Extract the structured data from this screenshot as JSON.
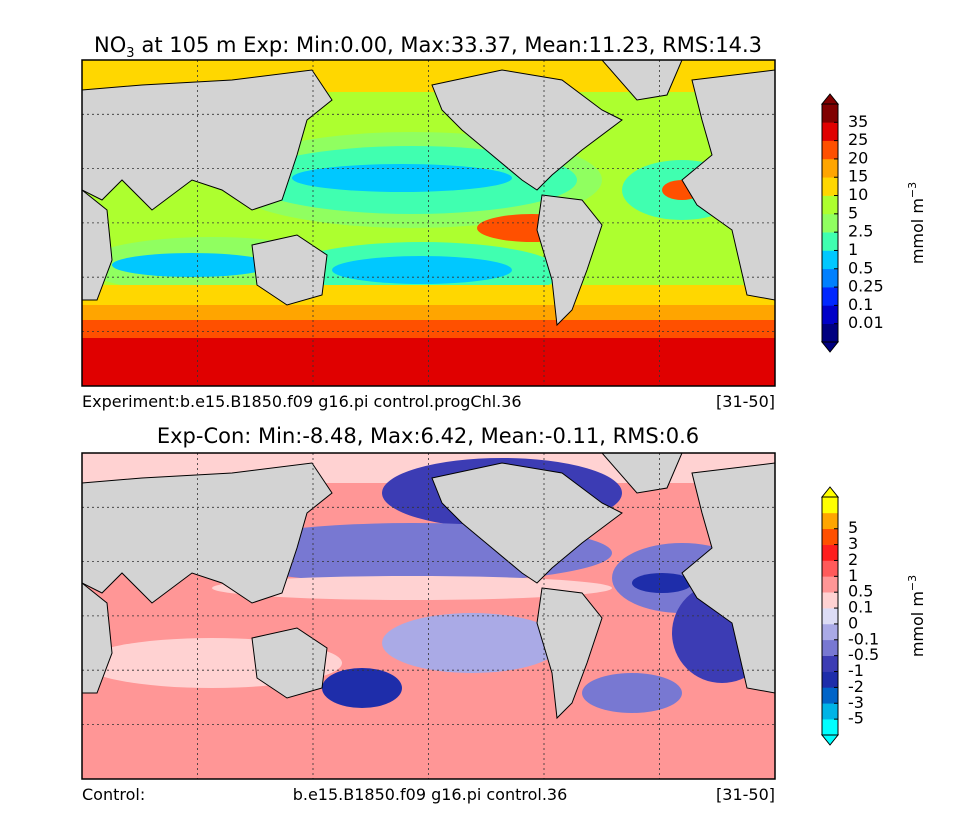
{
  "panels": [
    {
      "title": {
        "species": "NO",
        "subscript": "3",
        "text": "at 105 m Exp: Min:0.00, Max:33.37, Mean:11.23, RMS:14.3"
      },
      "footer": [
        "Experiment:b.e15.B1850.f09 g16.pi control.progChl.36",
        "[31-50]"
      ],
      "colorbar": {
        "labels": [
          "0.01",
          "0.1",
          "0.25",
          "0.5",
          "1",
          "2.5",
          "5",
          "10",
          "15",
          "20",
          "25",
          "35"
        ],
        "colors": [
          "#000080",
          "#0000c8",
          "#0028ff",
          "#0080ff",
          "#00c8ff",
          "#40ffb0",
          "#90ff60",
          "#adff2f",
          "#ffd700",
          "#ffa500",
          "#ff5000",
          "#e00000",
          "#800000"
        ],
        "unit": "mmol m",
        "unit_exponent": "−3"
      }
    },
    {
      "title": {
        "text": "Exp-Con: Min:-8.48, Max:6.42, Mean:-0.11, RMS:0.6"
      },
      "footer": [
        "Control:",
        "b.e15.B1850.f09 g16.pi control.36",
        "[31-50]"
      ],
      "colorbar": {
        "labels": [
          "-5",
          "-3",
          "-2",
          "-1",
          "-0.5",
          "-0.1",
          "0",
          "0.1",
          "0.5",
          "1",
          "2",
          "3",
          "5"
        ],
        "colors": [
          "#00ffff",
          "#00b4e6",
          "#0064c8",
          "#1e2daa",
          "#3c3cb4",
          "#7878d2",
          "#aaaae6",
          "#dcdcf5",
          "#ffd2d2",
          "#ff9696",
          "#ff5a5a",
          "#ff1e1e",
          "#ff5000",
          "#ffa500",
          "#ffff00"
        ],
        "unit": "mmol m",
        "unit_exponent": "−3"
      }
    }
  ]
}
